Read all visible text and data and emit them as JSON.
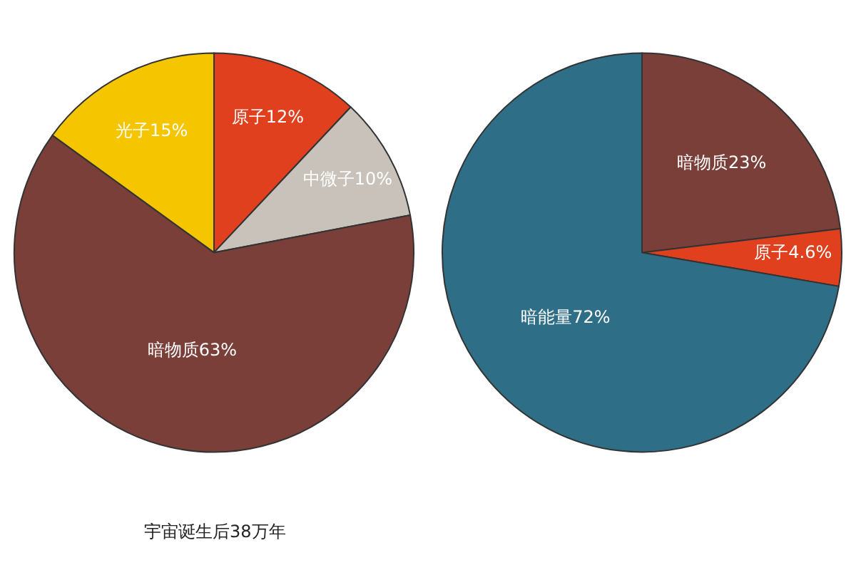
{
  "chart_data": [
    {
      "type": "pie",
      "categories": [
        "原子",
        "中微子",
        "暗物质",
        "光子"
      ],
      "values": [
        12,
        10,
        63,
        15
      ],
      "value_labels": [
        "12%",
        "10%",
        "63%",
        "15%"
      ],
      "colors": [
        "#e0401e",
        "#c9c2bb",
        "#7b3f39",
        "#f5c500"
      ],
      "annotations": [
        "宇宙诞生后38万年"
      ]
    },
    {
      "type": "pie",
      "categories": [
        "暗物质",
        "原子",
        "暗能量"
      ],
      "values": [
        23,
        4.6,
        72
      ],
      "value_labels": [
        "23%",
        "4.6%",
        "72%"
      ],
      "colors": [
        "#7b3f39",
        "#e0401e",
        "#2f6e87"
      ]
    }
  ]
}
